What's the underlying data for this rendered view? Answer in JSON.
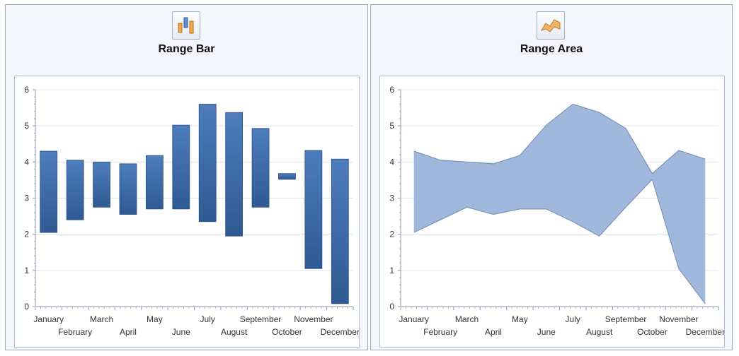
{
  "panels": [
    {
      "title": "Range Bar",
      "icon": "range-bar-icon",
      "chart_data": {
        "type": "range-bar",
        "categories": [
          "January",
          "February",
          "March",
          "April",
          "May",
          "June",
          "July",
          "August",
          "September",
          "October",
          "November",
          "December"
        ],
        "low": [
          2.05,
          2.4,
          2.75,
          2.55,
          2.7,
          2.7,
          2.35,
          1.95,
          2.75,
          3.52,
          1.05,
          0.08
        ],
        "high": [
          4.3,
          4.05,
          4.0,
          3.95,
          4.18,
          5.02,
          5.6,
          5.37,
          4.93,
          3.68,
          4.32,
          4.08
        ],
        "ylim": [
          0,
          6
        ],
        "yticks": [
          "0",
          "1",
          "2",
          "3",
          "4",
          "5",
          "6"
        ],
        "grid": true,
        "bar_color": "#4169a4"
      }
    },
    {
      "title": "Range Area",
      "icon": "range-area-icon",
      "chart_data": {
        "type": "range-area",
        "categories": [
          "January",
          "February",
          "March",
          "April",
          "May",
          "June",
          "July",
          "August",
          "September",
          "October",
          "November",
          "December"
        ],
        "low": [
          2.05,
          2.4,
          2.75,
          2.55,
          2.7,
          2.7,
          2.35,
          1.95,
          2.75,
          3.52,
          1.05,
          0.08
        ],
        "high": [
          4.3,
          4.05,
          4.0,
          3.95,
          4.18,
          5.02,
          5.6,
          5.37,
          4.93,
          3.68,
          4.32,
          4.08
        ],
        "ylim": [
          0,
          6
        ],
        "yticks": [
          "0",
          "1",
          "2",
          "3",
          "4",
          "5",
          "6"
        ],
        "grid": true,
        "area_color": "#9fb8dc",
        "line_color": "#7d93b5"
      }
    }
  ]
}
